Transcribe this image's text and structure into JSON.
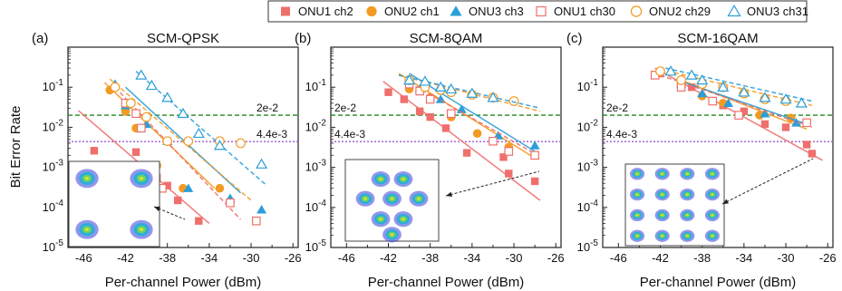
{
  "chart_data": {
    "type": "scatter",
    "layout": "three-panel",
    "ylabel": "Bit Error Rate",
    "xlabel": "Per-channel Power (dBm)",
    "y_scale": "log",
    "ylim": [
      1e-05,
      1
    ],
    "yticks": [
      1e-05,
      0.0001,
      0.001,
      0.01,
      0.1
    ],
    "ytick_labels": [
      "10-5",
      "10-4",
      "10-3",
      "10-2",
      "10-1"
    ],
    "grid": false,
    "legend_placement": "top-center",
    "legend": [
      {
        "name": "ONU1 ch2",
        "color": "#ef6f6c",
        "marker": "square",
        "filled": true
      },
      {
        "name": "ONU2 ch1",
        "color": "#f39a22",
        "marker": "circle",
        "filled": true
      },
      {
        "name": "ONU3 ch3",
        "color": "#2a9fd8",
        "marker": "triangle",
        "filled": true
      },
      {
        "name": "ONU1 ch30",
        "color": "#ef6f6c",
        "marker": "square",
        "filled": false
      },
      {
        "name": "ONU2 ch29",
        "color": "#f39a22",
        "marker": "circle",
        "filled": false
      },
      {
        "name": "ONU3 ch31",
        "color": "#2a9fd8",
        "marker": "triangle",
        "filled": false
      }
    ],
    "reference_lines": [
      {
        "label": "2e-2",
        "value": 0.02,
        "color": "#1f8a1f",
        "style": "dashed"
      },
      {
        "label": "4.4e-3",
        "value": 0.0044,
        "color": "#9b59d0",
        "style": "dotted"
      }
    ],
    "panels": [
      {
        "tag": "(a)",
        "title": "SCM-QPSK",
        "xlim": [
          -47.5,
          -25.5
        ],
        "xticks": [
          -46,
          -42,
          -38,
          -34,
          -30,
          -26
        ],
        "xtick_labels": [
          "-46",
          "-42",
          "-38",
          "-34",
          "-30",
          "-26"
        ],
        "series": [
          {
            "name": "ONU1 ch2",
            "points": [
              [
                -45,
                0.0026
              ],
              [
                -41,
                0.0024
              ],
              [
                -39,
                0.00055
              ],
              [
                -38,
                0.00035
              ],
              [
                -37,
                0.00015
              ],
              [
                -35,
                4.6e-05
              ]
            ],
            "fit": [
              [
                -46.5,
                0.026
              ],
              [
                -34,
                4e-05
              ]
            ]
          },
          {
            "name": "ONU2 ch1",
            "points": [
              [
                -43.5,
                0.085
              ],
              [
                -42,
                0.025
              ],
              [
                -41,
                0.0095
              ],
              [
                -39,
                0.0011
              ],
              [
                -36.5,
                0.0003
              ],
              [
                -33,
                0.0003
              ]
            ],
            "fit": [
              [
                -44,
                0.13
              ],
              [
                -33.5,
                0.0003
              ]
            ]
          },
          {
            "name": "ONU3 ch3",
            "points": [
              [
                -43,
                0.12
              ],
              [
                -42,
                0.035
              ],
              [
                -40,
                0.012
              ],
              [
                -38,
                0.0045
              ],
              [
                -36,
                0.0003
              ],
              [
                -32,
                0.00017
              ],
              [
                -29,
                8.8e-05
              ]
            ],
            "fit": [
              [
                -42,
                0.1
              ],
              [
                -31,
                0.00023
              ]
            ]
          },
          {
            "name": "ONU1 ch30",
            "points": [
              [
                -42,
                0.04
              ],
              [
                -41,
                0.022
              ],
              [
                -40.5,
                0.0095
              ],
              [
                -38.5,
                0.0003
              ],
              [
                -32,
                0.00013
              ],
              [
                -29.5,
                4.6e-05
              ]
            ],
            "fit": [
              [
                -43,
                0.1
              ],
              [
                -31,
                5e-05
              ]
            ]
          },
          {
            "name": "ONU2 ch29",
            "points": [
              [
                -43,
                0.1
              ],
              [
                -41.5,
                0.04
              ],
              [
                -40,
                0.018
              ],
              [
                -38,
                0.0045
              ],
              [
                -36,
                0.0045
              ],
              [
                -33,
                0.0045
              ],
              [
                -31,
                0.004
              ]
            ],
            "fit": [
              [
                -43.5,
                0.16
              ],
              [
                -30,
                0.00015
              ]
            ]
          },
          {
            "name": "ONU3 ch31",
            "points": [
              [
                -40.5,
                0.2
              ],
              [
                -39.5,
                0.11
              ],
              [
                -38,
                0.055
              ],
              [
                -36.5,
                0.022
              ],
              [
                -35,
                0.007
              ],
              [
                -33,
                0.0035
              ],
              [
                -29,
                0.0012
              ]
            ],
            "fit": [
              [
                -41,
                0.25
              ],
              [
                -28.5,
                0.00035
              ]
            ]
          }
        ],
        "inset": {
          "label": "QPSK constellation",
          "clusters": 4
        }
      },
      {
        "tag": "(b)",
        "title": "SCM-8QAM",
        "xlim": [
          -47.5,
          -25.5
        ],
        "xticks": [
          -46,
          -42,
          -38,
          -34,
          -30,
          -26
        ],
        "xtick_labels": [
          "-46",
          "-42",
          "-38",
          "-34",
          "-30",
          "-26"
        ],
        "series": [
          {
            "name": "ONU1 ch2",
            "points": [
              [
                -42,
                0.075
              ],
              [
                -40.5,
                0.05
              ],
              [
                -39,
                0.025
              ],
              [
                -38,
                0.018
              ],
              [
                -36.5,
                0.0095
              ],
              [
                -34.5,
                0.0023
              ],
              [
                -31,
                0.0018
              ],
              [
                -30.5,
                0.0007
              ],
              [
                -28,
                0.00045
              ]
            ],
            "fit": [
              [
                -42.5,
                0.14
              ],
              [
                -27.5,
                0.00015
              ]
            ]
          },
          {
            "name": "ONU2 ch1",
            "points": [
              [
                -40,
                0.09
              ],
              [
                -38,
                0.055
              ],
              [
                -36,
                0.018
              ],
              [
                -33.5,
                0.007
              ],
              [
                -30.5,
                0.0032
              ]
            ],
            "fit": [
              [
                -41,
                0.22
              ],
              [
                -28,
                0.0017
              ]
            ]
          },
          {
            "name": "ONU3 ch3",
            "points": [
              [
                -39,
                0.09
              ],
              [
                -37,
                0.05
              ],
              [
                -35,
                0.028
              ],
              [
                -31.5,
                0.0062
              ],
              [
                -28,
                0.0035
              ]
            ],
            "fit": [
              [
                -40,
                0.22
              ],
              [
                -28,
                0.0025
              ]
            ]
          },
          {
            "name": "ONU1 ch30",
            "points": [
              [
                -40,
                0.12
              ],
              [
                -39,
                0.08
              ],
              [
                -38,
                0.05
              ],
              [
                -36,
                0.022
              ],
              [
                -32,
                0.0045
              ],
              [
                -30.5,
                0.0025
              ],
              [
                -28,
                0.002
              ]
            ],
            "fit": [
              [
                -40,
                0.13
              ],
              [
                -28,
                0.0022
              ]
            ]
          },
          {
            "name": "ONU2 ch29",
            "points": [
              [
                -40,
                0.15
              ],
              [
                -38.5,
                0.1
              ],
              [
                -37,
                0.085
              ],
              [
                -36,
                0.075
              ],
              [
                -34,
                0.065
              ],
              [
                -32,
                0.055
              ],
              [
                -30,
                0.045
              ]
            ],
            "fit": [
              [
                -41,
                0.2
              ],
              [
                -27.5,
                0.025
              ]
            ]
          },
          {
            "name": "ONU3 ch31",
            "points": [
              [
                -40,
                0.15
              ],
              [
                -38.5,
                0.14
              ],
              [
                -37,
                0.1
              ],
              [
                -36,
                0.09
              ],
              [
                -34,
                0.07
              ],
              [
                -32,
                0.055
              ]
            ],
            "fit": [
              [
                -41,
                0.2
              ],
              [
                -27.5,
                0.03
              ]
            ]
          }
        ],
        "inset": {
          "label": "8QAM constellation",
          "clusters": 8
        }
      },
      {
        "tag": "(c)",
        "title": "SCM-16QAM",
        "xlim": [
          -47.5,
          -25.5
        ],
        "xticks": [
          -46,
          -42,
          -38,
          -34,
          -30,
          -26
        ],
        "xtick_labels": [
          "-46",
          "-42",
          "-38",
          "-34",
          "-30",
          "-26"
        ],
        "series": [
          {
            "name": "ONU1 ch2",
            "points": [
              [
                -42,
                0.22
              ],
              [
                -40,
                0.12
              ],
              [
                -39,
                0.1
              ],
              [
                -37,
                0.045
              ],
              [
                -36,
                0.035
              ],
              [
                -34,
                0.025
              ],
              [
                -32,
                0.012
              ],
              [
                -30,
                0.01
              ],
              [
                -28,
                0.0037
              ],
              [
                -27.5,
                0.0022
              ]
            ],
            "fit": [
              [
                -42.5,
                0.3
              ],
              [
                -26.5,
                0.0015
              ]
            ]
          },
          {
            "name": "ONU2 ch1",
            "points": [
              [
                -40,
                0.12
              ],
              [
                -38,
                0.06
              ],
              [
                -36,
                0.04
              ],
              [
                -32.5,
                0.02
              ],
              [
                -29.5,
                0.017
              ]
            ],
            "fit": [
              [
                -40,
                0.15
              ],
              [
                -28,
                0.009
              ]
            ]
          },
          {
            "name": "ONU3 ch3",
            "points": [
              [
                -40,
                0.12
              ],
              [
                -38,
                0.07
              ],
              [
                -35.5,
                0.04
              ],
              [
                -32,
                0.022
              ],
              [
                -29,
                0.013
              ]
            ],
            "fit": [
              [
                -40,
                0.14
              ],
              [
                -28,
                0.012
              ]
            ]
          },
          {
            "name": "ONU1 ch30",
            "points": [
              [
                -42.5,
                0.2
              ],
              [
                -40,
                0.1
              ],
              [
                -37,
                0.045
              ],
              [
                -34.5,
                0.02
              ],
              [
                -28,
                0.013
              ]
            ],
            "fit": [
              [
                -42,
                0.2
              ],
              [
                -27.5,
                0.01
              ]
            ]
          },
          {
            "name": "ONU2 ch29",
            "points": [
              [
                -42,
                0.25
              ],
              [
                -40,
                0.15
              ],
              [
                -38,
                0.12
              ],
              [
                -36,
                0.1
              ],
              [
                -34,
                0.07
              ],
              [
                -32,
                0.05
              ],
              [
                -30,
                0.045
              ]
            ],
            "fit": [
              [
                -42,
                0.28
              ],
              [
                -27.5,
                0.035
              ]
            ]
          },
          {
            "name": "ONU3 ch31",
            "points": [
              [
                -41,
                0.25
              ],
              [
                -39,
                0.2
              ],
              [
                -38,
                0.15
              ],
              [
                -36,
                0.1
              ],
              [
                -34,
                0.075
              ],
              [
                -32,
                0.055
              ],
              [
                -30,
                0.05
              ],
              [
                -28.5,
                0.04
              ]
            ],
            "fit": [
              [
                -41.5,
                0.3
              ],
              [
                -27.5,
                0.045
              ]
            ]
          }
        ],
        "inset": {
          "label": "16QAM constellation",
          "clusters": 16
        }
      }
    ]
  }
}
